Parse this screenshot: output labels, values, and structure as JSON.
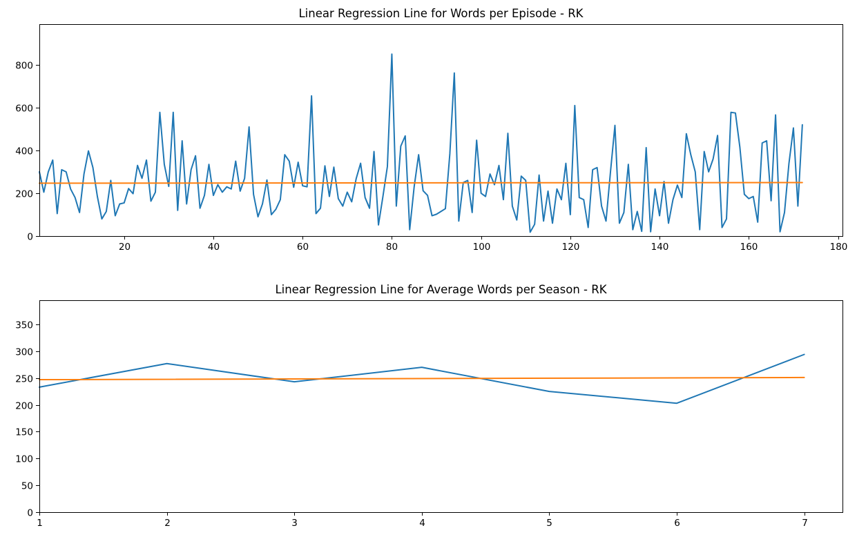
{
  "chart_data": [
    {
      "type": "line",
      "title": "Linear Regression Line for Words per Episode - RK",
      "xlabel": "",
      "ylabel": "",
      "xlim": [
        1,
        181
      ],
      "ylim": [
        0,
        990
      ],
      "xticks": [
        20,
        40,
        60,
        80,
        100,
        120,
        140,
        160,
        180
      ],
      "yticks": [
        0,
        200,
        400,
        600,
        800
      ],
      "grid": false,
      "series": [
        {
          "color": "#1f77b4",
          "x_start": 1,
          "values": [
            300,
            205,
            300,
            355,
            105,
            310,
            300,
            220,
            180,
            110,
            290,
            398,
            320,
            185,
            80,
            115,
            260,
            95,
            150,
            155,
            222,
            198,
            330,
            270,
            355,
            163,
            205,
            578,
            335,
            232,
            578,
            120,
            445,
            150,
            310,
            375,
            130,
            190,
            335,
            190,
            240,
            205,
            230,
            220,
            350,
            210,
            270,
            510,
            195,
            90,
            150,
            262,
            100,
            125,
            170,
            380,
            350,
            228,
            345,
            235,
            230,
            655,
            105,
            130,
            328,
            185,
            322,
            175,
            140,
            205,
            160,
            268,
            340,
            180,
            130,
            395,
            52,
            185,
            325,
            850,
            140,
            420,
            468,
            30,
            230,
            380,
            212,
            190,
            95,
            102,
            115,
            128,
            385,
            762,
            70,
            250,
            260,
            110,
            448,
            200,
            185,
            290,
            240,
            330,
            170,
            480,
            140,
            75,
            280,
            260,
            18,
            55,
            285,
            70,
            210,
            60,
            220,
            170,
            340,
            100,
            610,
            180,
            170,
            40,
            310,
            320,
            140,
            70,
            300,
            517,
            60,
            110,
            335,
            30,
            115,
            22,
            413,
            20,
            220,
            95,
            255,
            60,
            170,
            238,
            180,
            478,
            380,
            300,
            30,
            395,
            300,
            360,
            470,
            40,
            80,
            578,
            575,
            415,
            195,
            175,
            185,
            65,
            435,
            445,
            165,
            566,
            20,
            110,
            340,
            505,
            140,
            520
          ]
        },
        {
          "color": "#ff7f0e",
          "x": [
            1,
            172
          ],
          "values": [
            247,
            250
          ]
        }
      ]
    },
    {
      "type": "line",
      "title": "Linear Regression Line for Average Words per Season - RK",
      "xlabel": "",
      "ylabel": "",
      "xlim": [
        1,
        7.3
      ],
      "ylim": [
        0,
        395
      ],
      "xticks": [
        1,
        2,
        3,
        4,
        5,
        6,
        7
      ],
      "yticks": [
        0,
        50,
        100,
        150,
        200,
        250,
        300,
        350
      ],
      "grid": false,
      "series": [
        {
          "color": "#1f77b4",
          "x": [
            1,
            2,
            3,
            4,
            5,
            6,
            7
          ],
          "values": [
            233,
            277,
            243,
            270,
            225,
            203,
            294
          ]
        },
        {
          "color": "#ff7f0e",
          "x": [
            1,
            7
          ],
          "values": [
            247,
            251
          ]
        }
      ]
    }
  ]
}
